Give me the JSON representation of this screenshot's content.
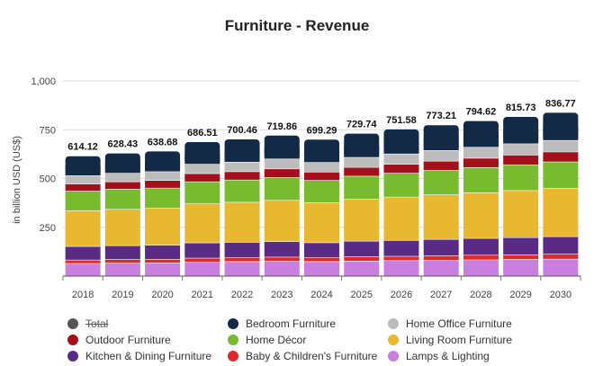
{
  "chart_data": {
    "type": "bar",
    "stacked": true,
    "title": "Furniture - Revenue",
    "xlabel": "",
    "ylabel": "in billion USD (US$)",
    "ylim": [
      0,
      1000
    ],
    "yticks": [
      0,
      250,
      500,
      750,
      1000
    ],
    "ytick_labels": [
      "",
      "250",
      "500",
      "750",
      "1,000"
    ],
    "grid": true,
    "legend_position": "bottom",
    "categories": [
      "2018",
      "2019",
      "2020",
      "2021",
      "2022",
      "2023",
      "2024",
      "2025",
      "2026",
      "2027",
      "2028",
      "2029",
      "2030"
    ],
    "totals": [
      614.12,
      628.43,
      638.68,
      686.51,
      700.46,
      719.86,
      699.29,
      729.74,
      751.58,
      773.21,
      794.62,
      815.73,
      836.77
    ],
    "total_labels": [
      "614.12",
      "628.43",
      "638.68",
      "686.51",
      "700.46",
      "719.86",
      "699.29",
      "729.74",
      "751.58",
      "773.21",
      "794.62",
      "815.73",
      "836.77"
    ],
    "series": [
      {
        "name": "Lamps & Lighting",
        "color": "#c97fe0",
        "values": [
          64,
          66,
          67,
          72,
          74,
          76,
          74,
          77,
          79,
          81,
          83,
          85,
          87
        ]
      },
      {
        "name": "Baby & Children's Furniture",
        "color": "#e02a2a",
        "values": [
          18,
          19,
          19,
          20,
          21,
          21,
          21,
          22,
          22,
          23,
          24,
          24,
          25
        ]
      },
      {
        "name": "Kitchen & Dining Furniture",
        "color": "#5a2b84",
        "values": [
          70,
          71,
          72,
          78,
          78,
          80,
          76,
          80,
          82,
          84,
          86,
          88,
          90
        ]
      },
      {
        "name": "Living Room Furniture",
        "color": "#e8b830",
        "values": [
          183,
          186,
          189,
          201,
          205,
          211,
          205,
          214,
          222,
          228,
          234,
          241,
          247
        ]
      },
      {
        "name": "Home Décor",
        "color": "#78bb2e",
        "values": [
          100,
          103,
          104,
          112,
          114,
          117,
          114,
          119,
          122,
          126,
          129,
          132,
          136
        ]
      },
      {
        "name": "Outdoor Furniture",
        "color": "#a3101c",
        "values": [
          37,
          38,
          39,
          42,
          43,
          44,
          43,
          45,
          46,
          47,
          48,
          50,
          51
        ]
      },
      {
        "name": "Home Office Furniture",
        "color": "#bcbcbc",
        "values": [
          43,
          44,
          45,
          48,
          49,
          51,
          49,
          51,
          53,
          55,
          56,
          58,
          59
        ]
      },
      {
        "name": "Bedroom Furniture",
        "color": "#122a45",
        "values": [
          99.12,
          101.43,
          103.68,
          113.51,
          116.46,
          119.86,
          117.29,
          121.74,
          125.58,
          129.21,
          134.62,
          137.73,
          141.77
        ]
      }
    ]
  },
  "legend": {
    "items": [
      {
        "name": "Total",
        "color": "#555555",
        "hidden": true
      },
      {
        "name": "Bedroom Furniture",
        "color": "#122a45",
        "hidden": false
      },
      {
        "name": "Home Office Furniture",
        "color": "#bcbcbc",
        "hidden": false
      },
      {
        "name": "Outdoor Furniture",
        "color": "#a3101c",
        "hidden": false
      },
      {
        "name": "Home Décor",
        "color": "#78bb2e",
        "hidden": false
      },
      {
        "name": "Living Room Furniture",
        "color": "#e8b830",
        "hidden": false
      },
      {
        "name": "Kitchen & Dining Furniture",
        "color": "#5a2b84",
        "hidden": false
      },
      {
        "name": "Baby & Children's Furniture",
        "color": "#e02a2a",
        "hidden": false
      },
      {
        "name": "Lamps & Lighting",
        "color": "#c97fe0",
        "hidden": false
      }
    ]
  }
}
